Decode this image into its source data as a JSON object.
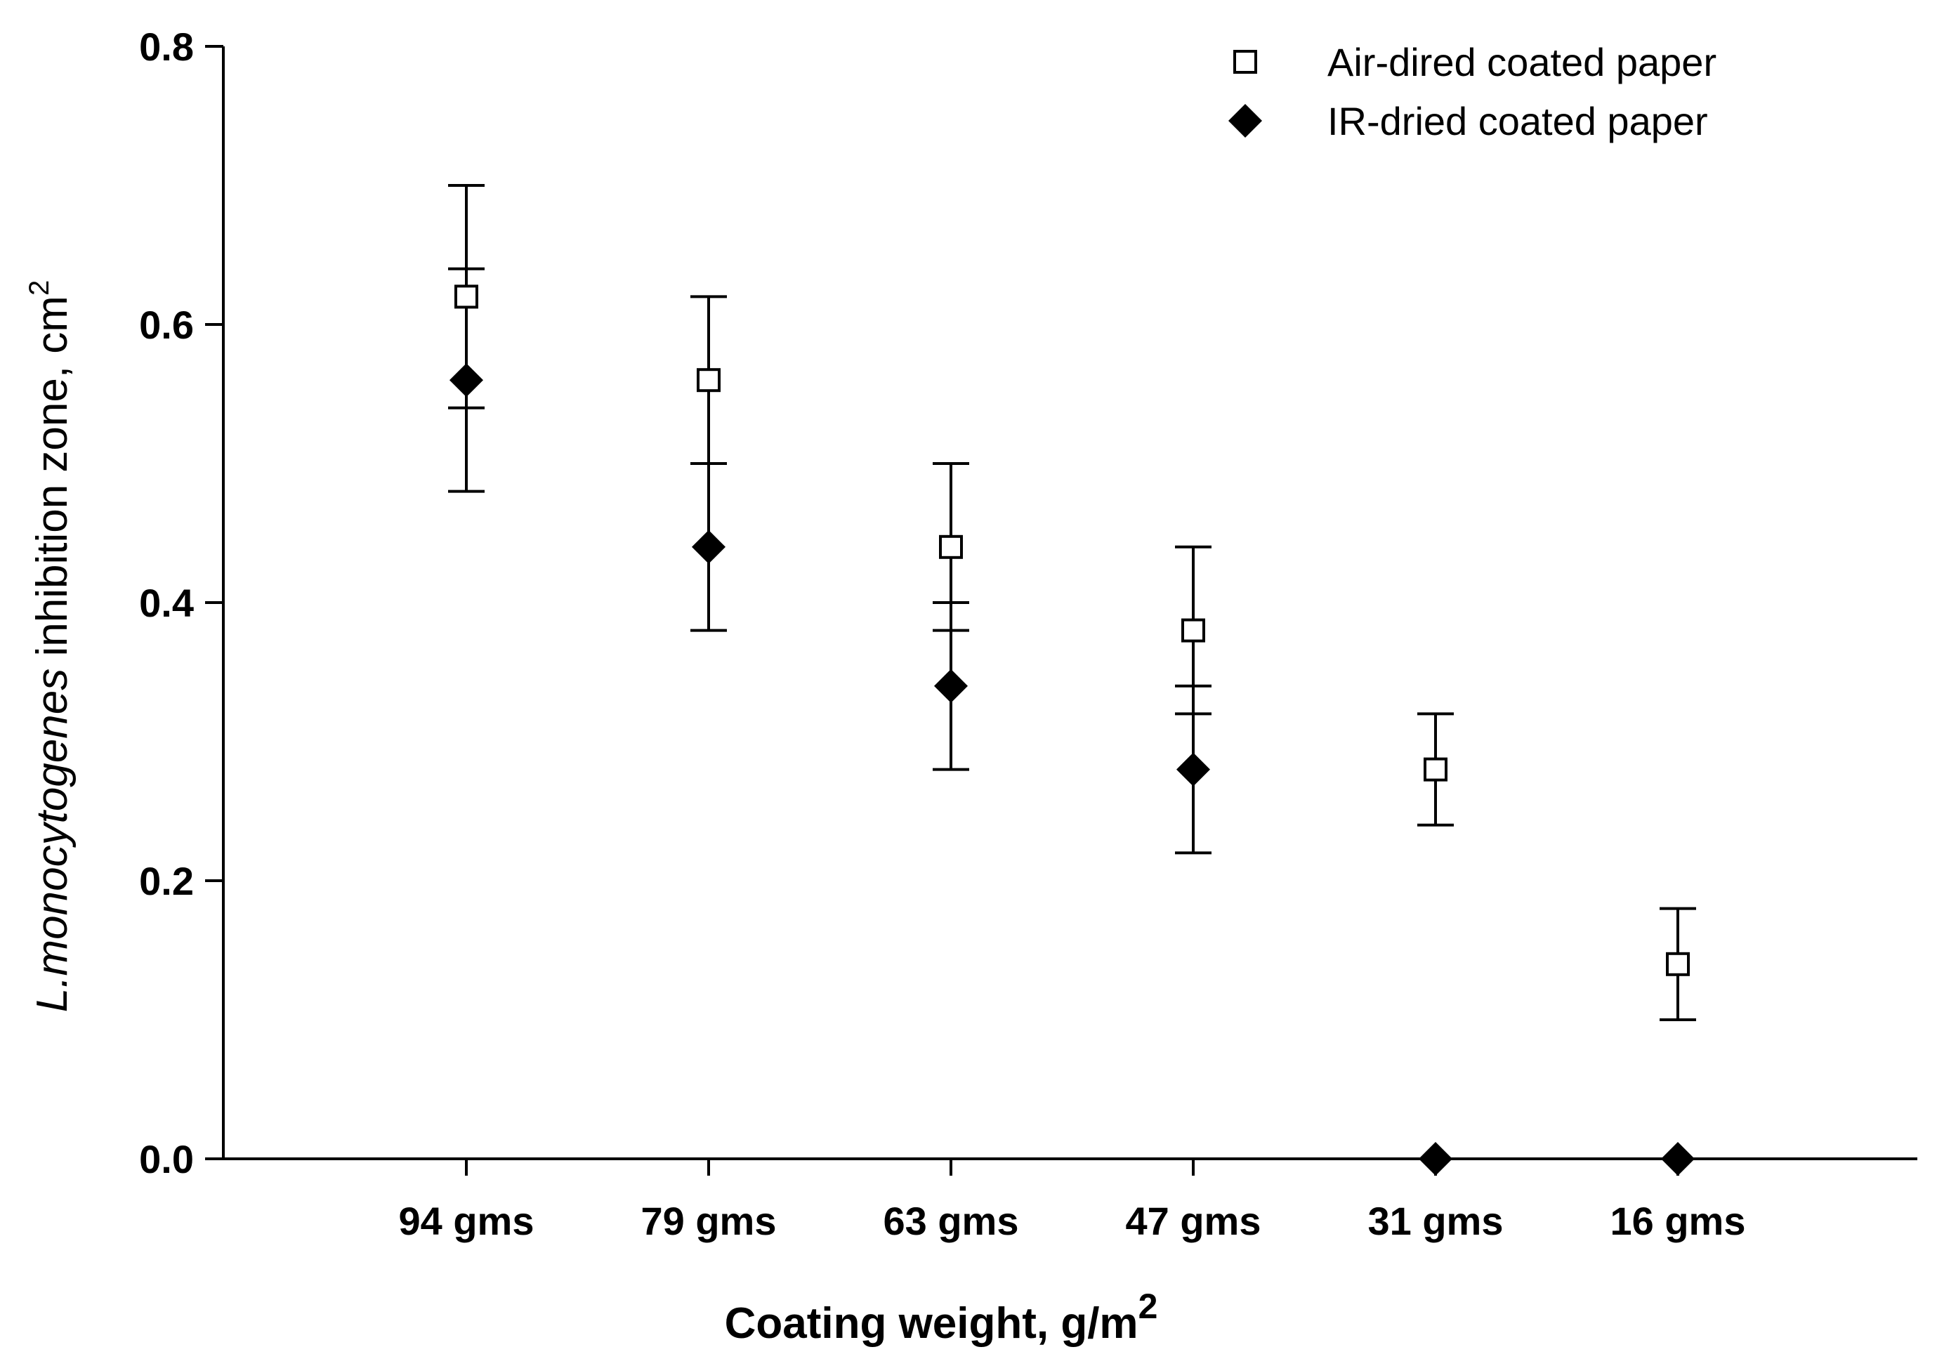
{
  "chart_data": {
    "type": "scatter",
    "title": "",
    "categories": [
      "94 gms",
      "79 gms",
      "63 gms",
      "47 gms",
      "31 gms",
      "16 gms"
    ],
    "xlabel": {
      "main": "Coating weight, g/m",
      "sup": "2"
    },
    "ylabel": {
      "italic": "L.monocytogenes",
      "main": " inhibition zone, cm",
      "sup": "2"
    },
    "ylim": [
      0,
      0.8
    ],
    "yticks": [
      "0.0",
      "0.2",
      "0.4",
      "0.6",
      "0.8"
    ],
    "legend_position": "top-right",
    "series": [
      {
        "name": "Air-dired coated paper",
        "marker": "open-square",
        "values": [
          0.62,
          0.56,
          0.44,
          0.38,
          0.28,
          0.14
        ],
        "errors": [
          0.08,
          0.06,
          0.06,
          0.06,
          0.04,
          0.04
        ]
      },
      {
        "name": "IR-dried coated paper",
        "marker": "filled-diamond",
        "values": [
          0.56,
          0.44,
          0.34,
          0.28,
          0.0,
          0.0
        ],
        "errors": [
          0.08,
          0.06,
          0.06,
          0.06,
          null,
          null
        ]
      }
    ]
  }
}
